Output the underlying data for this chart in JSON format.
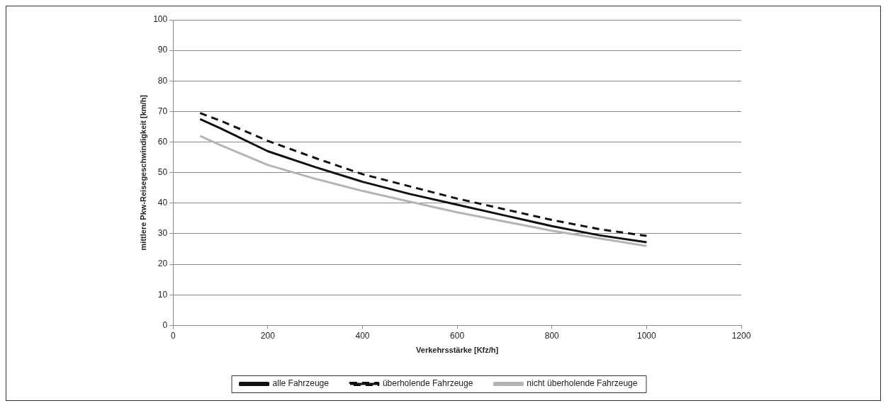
{
  "chart_data": {
    "type": "line",
    "xlabel": "Verkehrsstärke [Kfz/h]",
    "ylabel": "mittlere Pkw-Reisegeschwindigkeit [km/h]",
    "x": [
      57,
      100,
      200,
      300,
      400,
      500,
      600,
      700,
      800,
      900,
      1000
    ],
    "series": [
      {
        "name": "alle Fahrzeuge",
        "color": "#111111",
        "line_style": "solid",
        "values": [
          67.5,
          64.5,
          57,
          51.8,
          47,
          43,
          39.5,
          36,
          32.5,
          29.5,
          27.2
        ]
      },
      {
        "name": "überholende Fahrzeuge",
        "color": "#111111",
        "line_style": "dashed",
        "values": [
          69.5,
          67,
          60.4,
          54.8,
          49.5,
          45.5,
          41.5,
          38,
          34.5,
          31.5,
          29.3
        ]
      },
      {
        "name": "nicht überholende Fahrzeuge",
        "color": "#b4b4b4",
        "line_style": "solid",
        "values": [
          62,
          59,
          52.5,
          48,
          44,
          40.5,
          37,
          34,
          31,
          28.5,
          26
        ]
      }
    ],
    "xlim": [
      0,
      1200
    ],
    "xticks": [
      0,
      200,
      400,
      600,
      800,
      1000,
      1200
    ],
    "ylim": [
      0,
      100
    ],
    "yticks": [
      0,
      10,
      20,
      30,
      40,
      50,
      60,
      70,
      80,
      90,
      100
    ],
    "grid": "y",
    "legend": "bottom",
    "marker": "none"
  }
}
